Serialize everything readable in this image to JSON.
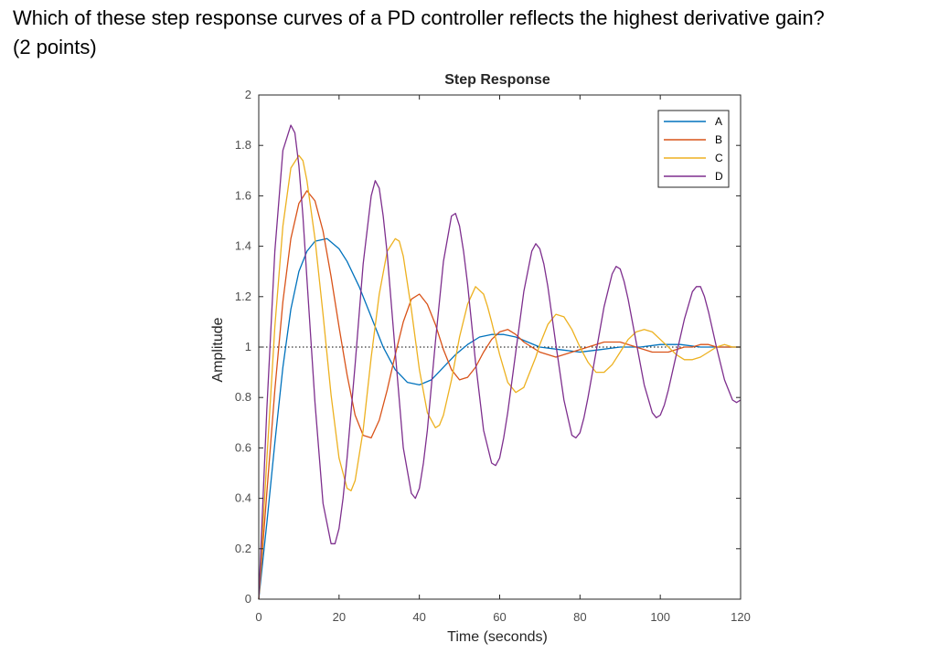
{
  "question": {
    "line1": "Which of these step response curves of a PD controller reflects the highest derivative gain?",
    "line2": "(2 points)"
  },
  "chart_data": {
    "type": "line",
    "title": "Step Response",
    "xlabel": "Time (seconds)",
    "ylabel": "Amplitude",
    "xlim": [
      0,
      120
    ],
    "ylim": [
      0,
      2
    ],
    "xticks": [
      0,
      20,
      40,
      60,
      80,
      100,
      120
    ],
    "yticks": [
      0,
      0.2,
      0.4,
      0.6,
      0.8,
      1,
      1.2,
      1.4,
      1.6,
      1.8,
      2
    ],
    "reference_line": 1,
    "legend_position": "top-right",
    "grid": false,
    "series": [
      {
        "name": "A",
        "color": "#0072BD",
        "x": [
          0,
          2,
          4,
          6,
          8,
          10,
          12,
          14,
          17,
          20,
          22,
          25,
          28,
          31,
          34,
          37,
          40,
          43,
          46,
          49,
          52,
          55,
          58,
          61,
          64,
          67,
          70,
          75,
          80,
          85,
          90,
          95,
          100,
          105,
          110,
          115,
          120
        ],
        "y": [
          0,
          0.3,
          0.62,
          0.92,
          1.15,
          1.3,
          1.38,
          1.42,
          1.43,
          1.39,
          1.34,
          1.24,
          1.12,
          1.0,
          0.91,
          0.86,
          0.85,
          0.87,
          0.92,
          0.97,
          1.01,
          1.04,
          1.05,
          1.05,
          1.04,
          1.02,
          1.0,
          0.99,
          0.98,
          0.99,
          1.0,
          1.0,
          1.01,
          1.01,
          1.0,
          1.0,
          1.0
        ]
      },
      {
        "name": "B",
        "color": "#D95319",
        "x": [
          0,
          2,
          4,
          6,
          8,
          10,
          12,
          14,
          16,
          18,
          20,
          22,
          24,
          26,
          28,
          30,
          32,
          34,
          36,
          38,
          40,
          42,
          44,
          46,
          48,
          50,
          52,
          54,
          56,
          58,
          60,
          62,
          64,
          66,
          68,
          70,
          72,
          74,
          76,
          78,
          80,
          82,
          84,
          86,
          88,
          90,
          92,
          94,
          96,
          98,
          100,
          102,
          104,
          106,
          108,
          110,
          112,
          114,
          116,
          118,
          120
        ],
        "y": [
          0,
          0.42,
          0.83,
          1.18,
          1.43,
          1.57,
          1.62,
          1.58,
          1.46,
          1.28,
          1.08,
          0.89,
          0.73,
          0.65,
          0.64,
          0.71,
          0.83,
          0.97,
          1.1,
          1.19,
          1.21,
          1.17,
          1.09,
          0.99,
          0.91,
          0.87,
          0.88,
          0.92,
          0.98,
          1.03,
          1.06,
          1.07,
          1.05,
          1.02,
          1.0,
          0.98,
          0.97,
          0.96,
          0.97,
          0.98,
          0.99,
          1.0,
          1.01,
          1.02,
          1.02,
          1.02,
          1.01,
          1.0,
          0.99,
          0.98,
          0.98,
          0.98,
          0.99,
          1.0,
          1.0,
          1.01,
          1.01,
          1.0,
          1.0,
          1.0,
          1.0
        ]
      },
      {
        "name": "C",
        "color": "#EDB120",
        "x": [
          0,
          2,
          4,
          6,
          8,
          10,
          11,
          12,
          14,
          16,
          18,
          20,
          22,
          23,
          24,
          26,
          28,
          30,
          32,
          34,
          35,
          36,
          38,
          40,
          42,
          44,
          45,
          46,
          48,
          50,
          52,
          54,
          56,
          57,
          58,
          60,
          62,
          64,
          66,
          68,
          69,
          70,
          72,
          74,
          76,
          78,
          80,
          82,
          84,
          86,
          88,
          90,
          92,
          94,
          96,
          98,
          100,
          102,
          104,
          106,
          108,
          110,
          112,
          114,
          116,
          118,
          120
        ],
        "y": [
          0,
          0.55,
          1.08,
          1.48,
          1.71,
          1.76,
          1.74,
          1.66,
          1.43,
          1.13,
          0.81,
          0.56,
          0.44,
          0.43,
          0.47,
          0.67,
          0.96,
          1.21,
          1.38,
          1.43,
          1.42,
          1.36,
          1.15,
          0.91,
          0.74,
          0.68,
          0.69,
          0.73,
          0.87,
          1.04,
          1.17,
          1.24,
          1.21,
          1.16,
          1.1,
          0.97,
          0.86,
          0.82,
          0.84,
          0.92,
          0.96,
          1.01,
          1.09,
          1.13,
          1.12,
          1.07,
          1.0,
          0.94,
          0.9,
          0.9,
          0.93,
          0.98,
          1.03,
          1.06,
          1.07,
          1.06,
          1.03,
          1.0,
          0.97,
          0.95,
          0.95,
          0.96,
          0.98,
          1.0,
          1.01,
          1.0,
          1.0
        ]
      },
      {
        "name": "D",
        "color": "#7E2F8E",
        "x": [
          0,
          2,
          4,
          6,
          8,
          9,
          10,
          11,
          12,
          14,
          16,
          18,
          19,
          20,
          21,
          22,
          24,
          26,
          28,
          29,
          30,
          31,
          32,
          34,
          36,
          38,
          39,
          40,
          41,
          42,
          44,
          46,
          48,
          49,
          50,
          51,
          52,
          54,
          56,
          58,
          59,
          60,
          61,
          62,
          64,
          66,
          68,
          69,
          70,
          71,
          72,
          74,
          76,
          78,
          79,
          80,
          81,
          82,
          84,
          86,
          88,
          89,
          90,
          91,
          92,
          94,
          96,
          98,
          99,
          100,
          101,
          102,
          104,
          106,
          108,
          109,
          110,
          111,
          112,
          114,
          116,
          118,
          119,
          120
        ],
        "y": [
          0,
          0.75,
          1.38,
          1.78,
          1.88,
          1.85,
          1.72,
          1.52,
          1.27,
          0.78,
          0.38,
          0.22,
          0.22,
          0.28,
          0.4,
          0.56,
          0.93,
          1.33,
          1.6,
          1.66,
          1.63,
          1.52,
          1.37,
          0.98,
          0.6,
          0.42,
          0.4,
          0.44,
          0.54,
          0.67,
          1.02,
          1.34,
          1.52,
          1.53,
          1.48,
          1.38,
          1.25,
          0.94,
          0.67,
          0.54,
          0.53,
          0.56,
          0.64,
          0.74,
          0.98,
          1.22,
          1.38,
          1.41,
          1.39,
          1.33,
          1.24,
          1.01,
          0.79,
          0.65,
          0.64,
          0.66,
          0.72,
          0.8,
          0.98,
          1.16,
          1.29,
          1.32,
          1.31,
          1.26,
          1.19,
          1.02,
          0.85,
          0.74,
          0.72,
          0.73,
          0.77,
          0.83,
          0.97,
          1.11,
          1.22,
          1.24,
          1.24,
          1.2,
          1.14,
          1.0,
          0.87,
          0.79,
          0.78,
          0.79
        ]
      }
    ]
  }
}
